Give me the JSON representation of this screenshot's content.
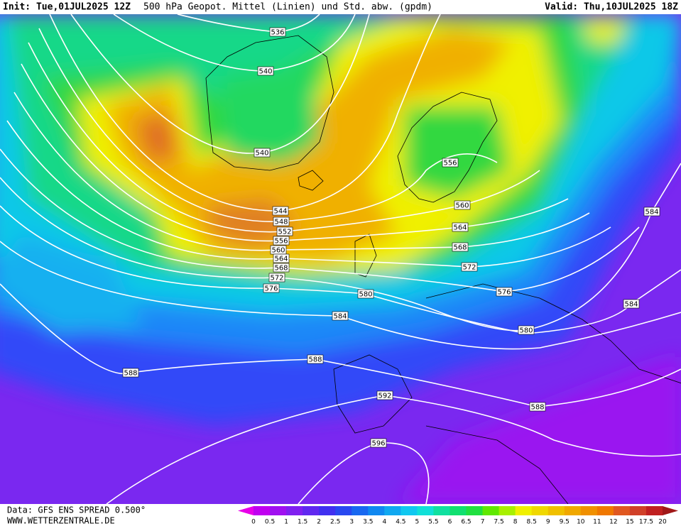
{
  "header": {
    "init": "Init: Tue,01JUL2025 12Z",
    "title": "500 hPa Geopot. Mittel (Linien) und Std. abw. (gpdm)",
    "valid": "Valid: Thu,10JUL2025 18Z"
  },
  "contour_labels": [
    536,
    540,
    540,
    544,
    548,
    552,
    556,
    560,
    564,
    568,
    572,
    576,
    580,
    584,
    588,
    588,
    592,
    596,
    556,
    560,
    564,
    568,
    572,
    576,
    580,
    584,
    584,
    588
  ],
  "legend": {
    "values": [
      0,
      0.5,
      1,
      1.5,
      2,
      2.5,
      3,
      3.5,
      4,
      4.5,
      5,
      5.5,
      6,
      6.5,
      7,
      7.5,
      8,
      8.5,
      9,
      9.5,
      10,
      11,
      12,
      15,
      17.5,
      20
    ],
    "colors": [
      "#e800e8",
      "#c000f0",
      "#a010f0",
      "#8020f0",
      "#6028f0",
      "#4030f0",
      "#2848f0",
      "#1868f0",
      "#1088f0",
      "#10a8f0",
      "#10c8f0",
      "#10e0d8",
      "#10e0a0",
      "#10e070",
      "#20e040",
      "#60e800",
      "#a8f000",
      "#f0f000",
      "#f0d800",
      "#f0c000",
      "#f0a800",
      "#f09000",
      "#f07800",
      "#e05820",
      "#d04028",
      "#c02020",
      "#a01818"
    ]
  },
  "footer": {
    "source": "Data: GFS ENS SPREAD 0.500°",
    "site": "WWW.WETTERZENTRALE.DE"
  }
}
